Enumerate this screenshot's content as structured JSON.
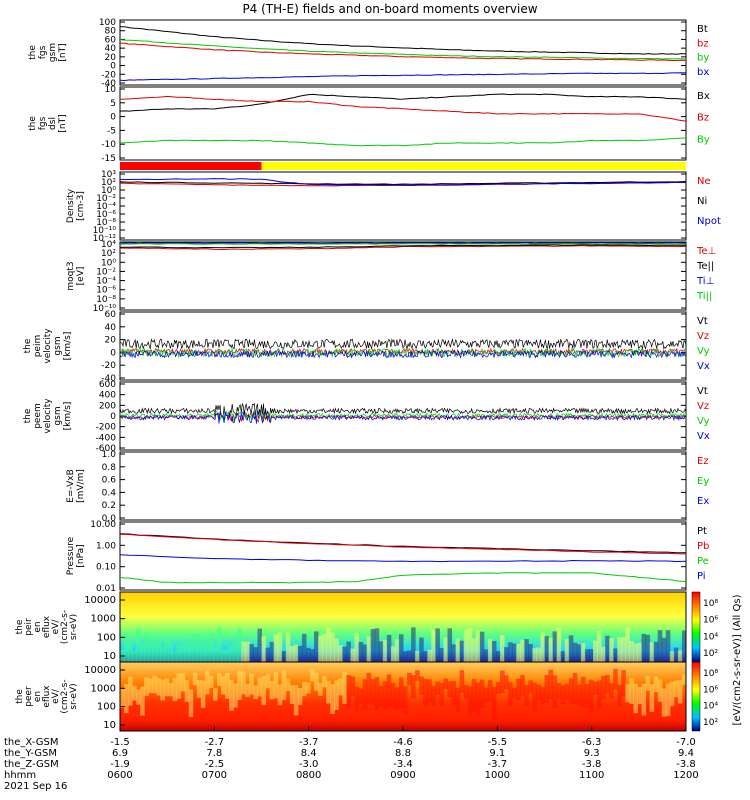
{
  "title": "P4 (TH-E) fields and on-board moments overview",
  "colors": {
    "black": "#000000",
    "red": "#e00000",
    "green": "#00cc00",
    "blue": "#0000e0",
    "bar_red": "#ff0000",
    "bar_yellow": "#ffff00"
  },
  "chart_data": [
    {
      "type": "line",
      "panel": "fgs_gsm",
      "ylabel": [
        "the",
        "fgs",
        "gsm",
        "[nT]"
      ],
      "yticks": [
        "100",
        "80",
        "60",
        "40",
        "20",
        "0",
        "-20",
        "-40"
      ],
      "ylim": [
        -40,
        100
      ],
      "legend": [
        {
          "label": "Bt",
          "color": "black"
        },
        {
          "label": "bz",
          "color": "red"
        },
        {
          "label": "by",
          "color": "green"
        },
        {
          "label": "bx",
          "color": "blue"
        }
      ],
      "series": [
        {
          "name": "Bt",
          "color": "black",
          "x": [
            6.0,
            6.5,
            7.0,
            7.5,
            8.0,
            8.5,
            9.0,
            9.5,
            10.0,
            10.5,
            11.0,
            11.5,
            12.0
          ],
          "y": [
            86,
            75,
            64,
            56,
            49,
            44,
            40,
            36,
            33,
            31,
            29,
            27,
            27
          ]
        },
        {
          "name": "bz",
          "color": "red",
          "x": [
            6.0,
            6.5,
            7.0,
            7.5,
            8.0,
            8.5,
            9.0,
            9.5,
            10.0,
            10.5,
            11.0,
            11.5,
            12.0
          ],
          "y": [
            50,
            43,
            36,
            31,
            27,
            24,
            21,
            19,
            17,
            16,
            15,
            14,
            13
          ]
        },
        {
          "name": "by",
          "color": "green",
          "x": [
            6.0,
            6.5,
            7.0,
            7.5,
            8.0,
            8.5,
            9.0,
            9.5,
            10.0,
            10.5,
            11.0,
            11.5,
            12.0
          ],
          "y": [
            58,
            51,
            44,
            38,
            33,
            29,
            26,
            23,
            21,
            20,
            18,
            17,
            16
          ]
        },
        {
          "name": "bx",
          "color": "blue",
          "x": [
            6.0,
            6.5,
            7.0,
            7.5,
            8.0,
            8.5,
            9.0,
            9.5,
            10.0,
            10.5,
            11.0,
            11.5,
            12.0
          ],
          "y": [
            -30,
            -28,
            -26,
            -24,
            -22,
            -20,
            -19,
            -18,
            -17,
            -16,
            -15,
            -15,
            -14
          ]
        }
      ]
    },
    {
      "type": "line",
      "panel": "fgs_dsl",
      "ylabel": [
        "the",
        "fgs",
        "dsl",
        "[nT]"
      ],
      "yticks": [
        "10",
        "5",
        "0",
        "-5",
        "-10",
        "-15"
      ],
      "ylim": [
        -18,
        12
      ],
      "legend": [
        {
          "label": "Bx",
          "color": "black"
        },
        {
          "label": "Bz",
          "color": "red"
        },
        {
          "label": "By",
          "color": "green"
        }
      ],
      "series": [
        {
          "name": "Bx",
          "color": "black",
          "x": [
            6.0,
            6.5,
            7.0,
            7.5,
            8.0,
            8.5,
            9.0,
            9.5,
            10.0,
            10.5,
            11.0,
            11.5,
            12.0
          ],
          "y": [
            2,
            3,
            3,
            5,
            9,
            8,
            7,
            8,
            9,
            9,
            8,
            8,
            7
          ]
        },
        {
          "name": "Bz",
          "color": "red",
          "x": [
            6.0,
            6.5,
            7.0,
            7.5,
            8.0,
            8.5,
            9.0,
            9.5,
            10.0,
            10.5,
            11.0,
            11.5,
            12.0
          ],
          "y": [
            7,
            8,
            7,
            6,
            6,
            4,
            3,
            2,
            1,
            1,
            1,
            1,
            -2
          ]
        },
        {
          "name": "By",
          "color": "green",
          "x": [
            6.0,
            6.5,
            7.0,
            7.5,
            8.0,
            8.5,
            9.0,
            9.5,
            10.0,
            10.5,
            11.0,
            11.5,
            12.0
          ],
          "y": [
            -11,
            -10,
            -10,
            -10,
            -11,
            -12,
            -12,
            -11,
            -11,
            -11,
            -10,
            -10,
            -9
          ]
        }
      ]
    },
    {
      "type": "bar",
      "panel": "mode_bar",
      "segments": [
        {
          "from": 6.0,
          "to": 7.5,
          "color": "bar_red"
        },
        {
          "from": 7.5,
          "to": 12.0,
          "color": "bar_yellow"
        }
      ]
    },
    {
      "type": "line",
      "panel": "density",
      "log": true,
      "ylabel": [
        "Density",
        "[cm-3]"
      ],
      "yticks": [
        "10³",
        "10²",
        "10⁰",
        "10⁻²",
        "10⁻⁴",
        "10⁻⁶",
        "10⁻⁸",
        "10⁻¹⁰",
        "10⁻¹²"
      ],
      "ylim": [
        -12,
        3
      ],
      "legend": [
        {
          "label": "Ne",
          "color": "red"
        },
        {
          "label": "Ni",
          "color": "black"
        },
        {
          "label": "Npot",
          "color": "blue"
        }
      ],
      "series": [
        {
          "name": "Ne",
          "color": "red",
          "x": [
            6.0,
            7.0,
            8.0,
            9.0,
            10.0,
            11.0,
            12.0
          ],
          "y": [
            0.5,
            0.2,
            0.0,
            0.0,
            0.3,
            0.5,
            0.7
          ]
        },
        {
          "name": "Ni",
          "color": "black",
          "x": [
            6.0,
            7.0,
            8.0,
            9.0,
            10.0,
            11.0,
            12.0
          ],
          "y": [
            0.8,
            0.6,
            0.4,
            0.3,
            0.5,
            0.7,
            0.9
          ]
        },
        {
          "name": "Npot",
          "color": "blue",
          "x": [
            6.0,
            7.0,
            7.5,
            8.0,
            9.0,
            10.0,
            11.0,
            12.0
          ],
          "y": [
            1.3,
            1.5,
            1.4,
            0.2,
            0.1,
            0.3,
            0.5,
            0.7
          ]
        }
      ]
    },
    {
      "type": "line",
      "panel": "temperature",
      "log": true,
      "ylabel": [
        "moqt3",
        "[eV]"
      ],
      "yticks": [
        "10⁴",
        "10²",
        "10⁰",
        "10⁻²",
        "10⁻⁴",
        "10⁻⁶",
        "10⁻⁸",
        "10⁻¹⁰"
      ],
      "ylim": [
        -10,
        4
      ],
      "legend": [
        {
          "label": "Te⊥",
          "color": "red"
        },
        {
          "label": "Te||",
          "color": "black"
        },
        {
          "label": "Ti⊥",
          "color": "blue"
        },
        {
          "label": "Ti||",
          "color": "green"
        }
      ],
      "series": [
        {
          "name": "Te⊥",
          "color": "red",
          "x": [
            6.0,
            7.0,
            8.0,
            9.0,
            10.0,
            11.0,
            12.0
          ],
          "y": [
            2.8,
            2.5,
            2.6,
            3.0,
            3.1,
            3.2,
            3.1
          ]
        },
        {
          "name": "Te||",
          "color": "black",
          "x": [
            6.0,
            7.0,
            8.0,
            9.0,
            10.0,
            11.0,
            12.0
          ],
          "y": [
            3.0,
            2.8,
            2.9,
            3.2,
            3.3,
            3.4,
            3.3
          ]
        },
        {
          "name": "Ti⊥",
          "color": "blue",
          "x": [
            6.0,
            7.0,
            8.0,
            9.0,
            10.0,
            11.0,
            12.0
          ],
          "y": [
            3.8,
            3.8,
            3.8,
            3.8,
            3.8,
            3.8,
            3.8
          ]
        },
        {
          "name": "Ti||",
          "color": "green",
          "x": [
            6.0,
            7.0,
            8.0,
            9.0,
            10.0,
            11.0,
            12.0
          ],
          "y": [
            3.6,
            3.6,
            3.6,
            3.6,
            3.6,
            3.6,
            3.6
          ]
        }
      ]
    },
    {
      "type": "line",
      "panel": "peim_velocity",
      "ylabel": [
        "the",
        "peim",
        "velocity",
        "gsm",
        "[km/s]"
      ],
      "yticks": [
        "60",
        "40",
        "20",
        "0",
        "-20",
        "-40"
      ],
      "ylim": [
        -40,
        60
      ],
      "legend": [
        {
          "label": "Vt",
          "color": "black"
        },
        {
          "label": "Vz",
          "color": "red"
        },
        {
          "label": "Vy",
          "color": "green"
        },
        {
          "label": "Vx",
          "color": "blue"
        }
      ],
      "series": [
        {
          "name": "Vt",
          "color": "black",
          "base": 13,
          "noise": 7
        },
        {
          "name": "Vz",
          "color": "red",
          "base": 2,
          "noise": 4
        },
        {
          "name": "Vy",
          "color": "green",
          "base": 0,
          "noise": 6
        },
        {
          "name": "Vx",
          "color": "blue",
          "base": -2,
          "noise": 5
        }
      ]
    },
    {
      "type": "line",
      "panel": "peem_velocity",
      "ylabel": [
        "the",
        "peem",
        "velocity",
        "gsm",
        "[km/s]"
      ],
      "yticks": [
        "600",
        "400",
        "200",
        "0",
        "-200",
        "-400",
        "-600"
      ],
      "ylim": [
        -600,
        600
      ],
      "legend": [
        {
          "label": "Vt",
          "color": "black"
        },
        {
          "label": "Vz",
          "color": "red"
        },
        {
          "label": "Vy",
          "color": "green"
        },
        {
          "label": "Vx",
          "color": "blue"
        }
      ],
      "series": [
        {
          "name": "Vt",
          "color": "black",
          "base": 90,
          "noise": 45
        },
        {
          "name": "Vz",
          "color": "red",
          "base": -20,
          "noise": 30
        },
        {
          "name": "Vy",
          "color": "green",
          "base": 10,
          "noise": 35
        },
        {
          "name": "Vx",
          "color": "blue",
          "base": -30,
          "noise": 40
        }
      ]
    },
    {
      "type": "line",
      "panel": "efield",
      "ylabel": [
        "E=-VxB",
        "[mV/m]"
      ],
      "yticks": [
        "1.0",
        "0.8",
        "0.6",
        "0.4",
        "0.2",
        "0.0"
      ],
      "ylim": [
        0,
        1
      ],
      "legend": [
        {
          "label": "Ez",
          "color": "red"
        },
        {
          "label": "Ey",
          "color": "green"
        },
        {
          "label": "Ex",
          "color": "blue"
        }
      ],
      "series": []
    },
    {
      "type": "line",
      "panel": "pressure",
      "log": true,
      "ylabel": [
        "Pressure",
        "[nPa]"
      ],
      "yticks": [
        "10.00",
        "1.00",
        "0.10",
        "0.01"
      ],
      "ylim": [
        -2.2,
        1
      ],
      "legend": [
        {
          "label": "Pt",
          "color": "black"
        },
        {
          "label": "Pb",
          "color": "red"
        },
        {
          "label": "Pe",
          "color": "green"
        },
        {
          "label": "Pi",
          "color": "blue"
        }
      ],
      "series": [
        {
          "name": "Pt",
          "color": "black",
          "x": [
            6.0,
            7.0,
            8.0,
            9.0,
            10.0,
            11.0,
            12.0
          ],
          "y": [
            0.45,
            0.2,
            0.0,
            -0.15,
            -0.25,
            -0.35,
            -0.45
          ]
        },
        {
          "name": "Pb",
          "color": "red",
          "x": [
            6.0,
            7.0,
            8.0,
            9.0,
            10.0,
            11.0,
            12.0
          ],
          "y": [
            0.43,
            0.18,
            -0.02,
            -0.18,
            -0.28,
            -0.4,
            -0.5
          ]
        },
        {
          "name": "Pe",
          "color": "green",
          "x": [
            6.0,
            6.5,
            7.0,
            8.0,
            8.5,
            9.0,
            10.0,
            11.0,
            11.5,
            12.0
          ],
          "y": [
            -1.6,
            -1.85,
            -1.85,
            -1.85,
            -1.8,
            -1.5,
            -1.4,
            -1.4,
            -1.6,
            -1.8
          ]
        },
        {
          "name": "Pi",
          "color": "blue",
          "x": [
            6.0,
            7.0,
            8.0,
            9.0,
            10.0,
            11.0,
            12.0
          ],
          "y": [
            -0.55,
            -0.72,
            -0.8,
            -0.85,
            -0.85,
            -0.82,
            -0.85
          ]
        }
      ]
    },
    {
      "type": "heatmap",
      "panel": "peir_eflux",
      "ylabel": [
        "the",
        "peir",
        "en",
        "eflux",
        "eV/",
        "(cm2-s-",
        "sr-eV)"
      ],
      "yticks": [
        "10000",
        "1000",
        "100",
        "10"
      ],
      "colorbar_ticks": [
        "10⁸",
        "10⁶",
        "10⁴",
        "10²"
      ]
    },
    {
      "type": "heatmap",
      "panel": "peer_eflux",
      "ylabel": [
        "the",
        "peer",
        "en",
        "eflux",
        "eV/",
        "(cm2-s-",
        "sr-eV)"
      ],
      "yticks": [
        "10000",
        "1000",
        "100",
        "10"
      ],
      "colorbar_ticks": [
        "10⁸",
        "10⁶",
        "10⁴",
        "10²"
      ]
    }
  ],
  "colorbar_label": "[eV/(cm2-s-sr-eV)] (All Qs)",
  "xaxis": {
    "row_labels": [
      "the_X-GSM",
      "the_Y-GSM",
      "the_Z-GSM",
      "hhmm",
      "2021 Sep 16"
    ],
    "columns": [
      {
        "x": "-1.5",
        "y": "6.9",
        "z": "-1.9",
        "t": "0600"
      },
      {
        "x": "-2.7",
        "y": "7.8",
        "z": "-2.5",
        "t": "0700"
      },
      {
        "x": "-3.7",
        "y": "8.4",
        "z": "-3.0",
        "t": "0800"
      },
      {
        "x": "-4.6",
        "y": "8.8",
        "z": "-3.4",
        "t": "0900"
      },
      {
        "x": "-5.5",
        "y": "9.1",
        "z": "-3.7",
        "t": "1000"
      },
      {
        "x": "-6.3",
        "y": "9.3",
        "z": "-3.8",
        "t": "1100"
      },
      {
        "x": "-7.0",
        "y": "9.4",
        "z": "-3.8",
        "t": "1200"
      }
    ]
  }
}
